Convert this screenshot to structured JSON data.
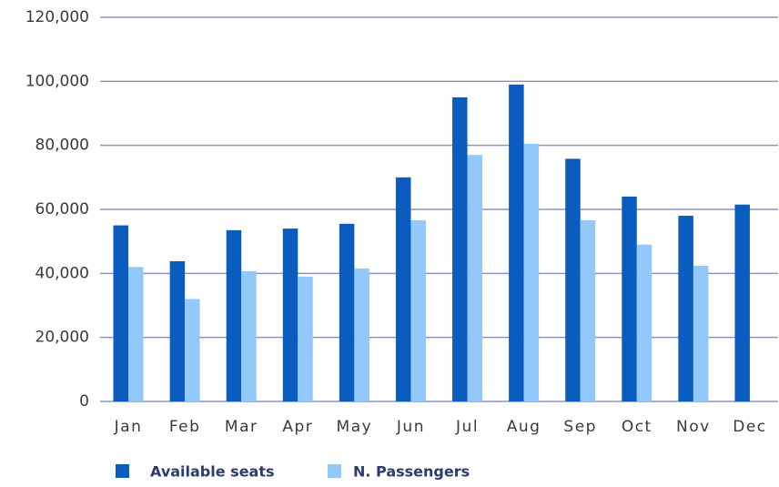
{
  "chart_data": {
    "type": "bar",
    "categories": [
      "Jan",
      "Feb",
      "Mar",
      "Apr",
      "May",
      "Jun",
      "Jul",
      "Aug",
      "Sep",
      "Oct",
      "Nov",
      "Dec"
    ],
    "series": [
      {
        "name": "Available seats",
        "color": "#0b5cbf",
        "values": [
          55000,
          43800,
          53500,
          54000,
          55500,
          70000,
          95000,
          99000,
          75800,
          64000,
          58000,
          61500
        ]
      },
      {
        "name": "N. Passengers",
        "color": "#93c8fa",
        "values": [
          42000,
          32000,
          40700,
          39000,
          41500,
          56600,
          77000,
          80500,
          56600,
          49000,
          42400,
          null
        ]
      }
    ],
    "ylim": [
      0,
      120000
    ],
    "yticks": [
      0,
      {
        "value": 20000,
        "label": "20,000"
      },
      {
        "value": 40000,
        "label": "40,000"
      },
      {
        "value": 60000,
        "label": "60,000"
      },
      {
        "value": 80000,
        "label": "80,000"
      },
      {
        "value": 100000,
        "label": "100,000"
      },
      {
        "value": 120000,
        "label": "120,000"
      }
    ],
    "grid": true,
    "legend": "bottom"
  }
}
